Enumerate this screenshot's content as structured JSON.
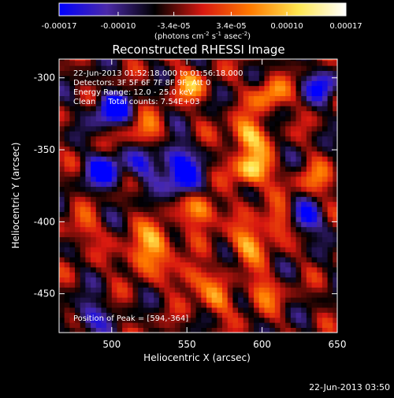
{
  "chart_data": {
    "type": "heatmap",
    "title": "Reconstructed RHESSI Image",
    "xlabel": "Heliocentric X (arcsec)",
    "ylabel": "Heliocentric Y (arcsec)",
    "xlim": [
      465,
      650
    ],
    "ylim": [
      -477,
      -287
    ],
    "x_ticks": [
      500,
      550,
      600,
      650
    ],
    "y_ticks": [
      -300,
      -350,
      -400,
      -450
    ],
    "colorbar": {
      "range": [
        -0.00017,
        0.00017
      ],
      "tick_values": [
        -0.00017,
        -0.0001,
        -3.4e-05,
        3.4e-05,
        0.0001,
        0.00017
      ],
      "tick_labels": [
        "-0.00017",
        "-0.00010",
        "-3.4e-05",
        "3.4e-05",
        "0.00010",
        "0.00017"
      ],
      "units_prefix": "(photons cm",
      "units_exp1": "-2",
      "units_mid": " s",
      "units_exp2": "-1",
      "units_end": " asec",
      "units_exp3": "-2",
      "units_close": ")",
      "stops": [
        "#0000ff",
        "#4b2aa8",
        "#000000",
        "#d81810",
        "#ff7a00",
        "#ffe650",
        "#ffffff"
      ]
    },
    "annotations": [
      "22-Jun-2013 01:52:18.000 to 01:56:18.000",
      "Detectors: 3F 5F 6F 7F 8F 9F, Att 0",
      "Energy Range: 12.0 - 25.0 keV",
      "Clean     Total counts: 7.54E+03"
    ],
    "peak_label": "Position of Peak = [594,-364]",
    "peak": [
      594,
      -364
    ],
    "bright_sources": [
      {
        "x": 594,
        "y": -364,
        "value": 0.00017
      },
      {
        "x": 590,
        "y": -340,
        "value": 0.00015
      },
      {
        "x": 605,
        "y": -312,
        "value": 0.00011
      },
      {
        "x": 552,
        "y": -305,
        "value": 0.0001
      },
      {
        "x": 522,
        "y": -338,
        "value": 9e-05
      },
      {
        "x": 560,
        "y": -392,
        "value": 0.00013
      },
      {
        "x": 530,
        "y": -412,
        "value": 0.00012
      },
      {
        "x": 590,
        "y": -415,
        "value": 0.00012
      },
      {
        "x": 610,
        "y": -400,
        "value": 0.00011
      },
      {
        "x": 518,
        "y": -425,
        "value": 0.0001
      },
      {
        "x": 552,
        "y": -438,
        "value": 0.0001
      },
      {
        "x": 600,
        "y": -448,
        "value": 9e-05
      },
      {
        "x": 635,
        "y": -372,
        "value": 8e-05
      },
      {
        "x": 480,
        "y": -405,
        "value": 7e-05
      },
      {
        "x": 570,
        "y": -455,
        "value": 8e-05
      }
    ],
    "dim_sources": [
      {
        "x": 500,
        "y": -322,
        "value": -0.00016
      },
      {
        "x": 495,
        "y": -365,
        "value": -0.00015
      },
      {
        "x": 542,
        "y": -355,
        "value": -0.00012
      },
      {
        "x": 548,
        "y": -372,
        "value": -0.00014
      },
      {
        "x": 640,
        "y": -305,
        "value": -0.00011
      },
      {
        "x": 628,
        "y": -398,
        "value": -0.00013
      },
      {
        "x": 520,
        "y": -360,
        "value": -9e-05
      },
      {
        "x": 485,
        "y": -465,
        "value": -0.0001
      }
    ]
  },
  "footer": {
    "timestamp": "22-Jun-2013 03:50"
  }
}
